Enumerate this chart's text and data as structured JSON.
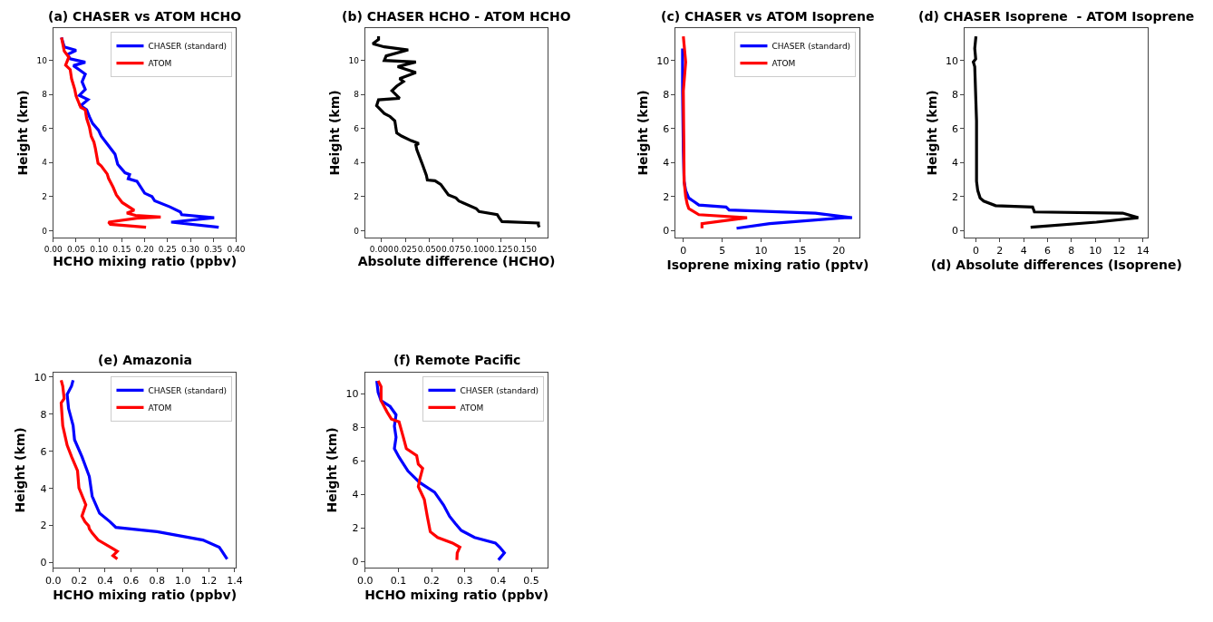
{
  "chart_data": [
    {
      "type": "line",
      "title": "(a) CHASER vs ATOM HCHO",
      "xlabel": "HCHO mixing ratio (ppbv)",
      "ylabel": "Height (km)",
      "xlim": [
        0,
        0.4
      ],
      "ylim": [
        -0.4,
        11.9
      ],
      "grid": false,
      "legend": "top right",
      "xticks": [
        {
          "value": 0,
          "label": "0.00"
        },
        {
          "value": 0.05,
          "label": "0.05"
        },
        {
          "value": 0.1,
          "label": "0.10"
        },
        {
          "value": 0.15,
          "label": "0.15"
        },
        {
          "value": 0.2,
          "label": "0.20"
        },
        {
          "value": 0.25,
          "label": "0.25"
        },
        {
          "value": 0.3,
          "label": "0.30"
        },
        {
          "value": 0.35,
          "label": "0.35"
        },
        {
          "value": 0.4,
          "label": "0.40"
        }
      ],
      "yticks": [
        0,
        2,
        4,
        6,
        8,
        10
      ],
      "series": [
        {
          "name": "CHASER (standard)",
          "color": "#0000ff",
          "x": [
            0.362,
            0.258,
            0.352,
            0.281,
            0.278,
            0.255,
            0.222,
            0.216,
            0.2,
            0.183,
            0.164,
            0.167,
            0.157,
            0.141,
            0.135,
            0.118,
            0.105,
            0.099,
            0.086,
            0.079,
            0.073,
            0.06,
            0.076,
            0.057,
            0.07,
            0.063,
            0.07,
            0.057,
            0.044,
            0.07,
            0.037,
            0.031,
            0.05,
            0.024,
            0.018
          ],
          "values": [
            0.2,
            0.5,
            0.76,
            0.94,
            1.1,
            1.4,
            1.75,
            2.0,
            2.2,
            2.9,
            3.05,
            3.3,
            3.4,
            3.9,
            4.5,
            5.1,
            5.55,
            5.9,
            6.3,
            6.7,
            7.1,
            7.35,
            7.7,
            7.95,
            8.3,
            8.75,
            9.2,
            9.45,
            9.7,
            9.9,
            10.1,
            10.35,
            10.6,
            10.8,
            11.35
          ]
        },
        {
          "name": "ATOM",
          "color": "#ff0000",
          "x": [
            0.203,
            0.125,
            0.121,
            0.183,
            0.235,
            0.18,
            0.161,
            0.177,
            0.151,
            0.138,
            0.131,
            0.121,
            0.118,
            0.105,
            0.098,
            0.092,
            0.089,
            0.083,
            0.079,
            0.073,
            0.07,
            0.06,
            0.05,
            0.047,
            0.04,
            0.037,
            0.027,
            0.034,
            0.024,
            0.018
          ],
          "values": [
            0.2,
            0.37,
            0.5,
            0.73,
            0.8,
            0.9,
            1.03,
            1.2,
            1.65,
            2.1,
            2.55,
            3.07,
            3.33,
            3.8,
            3.96,
            4.85,
            5.2,
            5.55,
            6.1,
            6.6,
            7.1,
            7.25,
            7.9,
            8.3,
            8.93,
            9.47,
            9.73,
            10.2,
            10.55,
            11.35
          ]
        }
      ]
    },
    {
      "type": "line",
      "title": "(b) CHASER HCHO - ATOM HCHO",
      "xlabel": "Absolute difference (HCHO)",
      "ylabel": "Height (km)",
      "xlim": [
        -0.017,
        0.174
      ],
      "ylim": [
        -0.4,
        11.9
      ],
      "grid": false,
      "xticks": [
        {
          "value": 0,
          "label": "0.000"
        },
        {
          "value": 0.025,
          "label": "0.025"
        },
        {
          "value": 0.05,
          "label": "0.050"
        },
        {
          "value": 0.075,
          "label": "0.075"
        },
        {
          "value": 0.1,
          "label": "0.100"
        },
        {
          "value": 0.125,
          "label": "0.125"
        },
        {
          "value": 0.15,
          "label": "0.150"
        }
      ],
      "yticks": [
        0,
        2,
        4,
        6,
        8,
        10
      ],
      "series": [
        {
          "color": "#000000",
          "x": [
            0.165,
            0.164,
            0.164,
            0.126,
            0.123,
            0.121,
            0.102,
            0.099,
            0.081,
            0.078,
            0.07,
            0.062,
            0.056,
            0.048,
            0.047,
            0.043,
            0.037,
            0.036,
            0.039,
            0.031,
            0.021,
            0.016,
            0.014,
            0.009,
            0.003,
            -0.005,
            -0.003,
            0.019,
            0.011,
            0.016,
            0.023,
            0.019,
            0.036,
            0.017,
            0.036,
            0.003,
            0.005,
            0.028,
            0.003,
            -0.009,
            -0.003,
            -0.003
          ],
          "values": [
            0.2,
            0.32,
            0.45,
            0.53,
            0.76,
            0.94,
            1.12,
            1.3,
            1.74,
            1.92,
            2.1,
            2.72,
            2.93,
            2.98,
            3.25,
            3.87,
            4.76,
            5.03,
            5.12,
            5.29,
            5.56,
            5.74,
            6.45,
            6.71,
            6.89,
            7.34,
            7.69,
            7.78,
            8.22,
            8.49,
            8.76,
            8.93,
            9.29,
            9.64,
            9.91,
            10.0,
            10.27,
            10.62,
            10.8,
            10.98,
            11.24,
            11.42
          ]
        }
      ]
    },
    {
      "type": "line",
      "title": "(c) CHASER vs ATOM Isoprene",
      "xlabel": "Isoprene mixing ratio (pptv)",
      "ylabel": "Height (km)",
      "xlim": [
        -0.97,
        22.7
      ],
      "ylim": [
        -0.4,
        11.9
      ],
      "grid": false,
      "legend": "top right",
      "xticks": [
        0,
        5,
        10,
        15,
        20
      ],
      "yticks": [
        0,
        2,
        4,
        6,
        8,
        10
      ],
      "series": [
        {
          "name": "CHASER (standard)",
          "color": "#0000ff",
          "x": [
            6.85,
            11.1,
            20.7,
            21.7,
            17.0,
            5.9,
            5.5,
            2.0,
            0.7,
            0.3,
            0.1,
            0,
            -0.1,
            -0.1
          ],
          "values": [
            0.14,
            0.41,
            0.76,
            0.76,
            1.03,
            1.21,
            1.39,
            1.51,
            1.92,
            2.36,
            2.9,
            4.67,
            8.2,
            10.7
          ]
        },
        {
          "name": "ATOM",
          "color": "#ff0000",
          "x": [
            2.4,
            2.4,
            8.2,
            2.0,
            0.7,
            0.5,
            0.3,
            0.1,
            0,
            0.3,
            0
          ],
          "values": [
            0.14,
            0.41,
            0.76,
            0.94,
            1.3,
            1.56,
            2.0,
            2.9,
            8.2,
            9.9,
            11.42
          ]
        }
      ]
    },
    {
      "type": "line",
      "title": "(d) CHASER Isoprene  - ATOM Isoprene",
      "xlabel": "(d) Absolute differences (Isoprene)",
      "ylabel": "Height (km)",
      "xlim": [
        -0.92,
        14.4
      ],
      "ylim": [
        -0.4,
        11.9
      ],
      "grid": false,
      "xticks": [
        0,
        2,
        4,
        6,
        8,
        10,
        12,
        14
      ],
      "yticks": [
        0,
        2,
        4,
        6,
        8,
        10
      ],
      "series": [
        {
          "color": "#000000",
          "x": [
            4.58,
            10.1,
            13.6,
            12.3,
            4.9,
            4.75,
            1.65,
            0.65,
            0.35,
            0.15,
            0.05,
            0.05,
            -0.1,
            -0.22,
            -0.02,
            -0.1,
            0
          ],
          "values": [
            0.2,
            0.5,
            0.76,
            1.03,
            1.1,
            1.39,
            1.47,
            1.74,
            1.92,
            2.36,
            2.9,
            6.45,
            9.64,
            9.91,
            10.09,
            10.71,
            11.42
          ]
        }
      ]
    },
    {
      "type": "line",
      "title": "(e) Amazonia",
      "xlabel": "HCHO mixing ratio (ppbv)",
      "ylabel": "Height (km)",
      "xlim": [
        0,
        1.41
      ],
      "ylim": [
        -0.26,
        10.24
      ],
      "grid": false,
      "legend": "top right",
      "xticks": [
        {
          "value": 0,
          "label": "0.0"
        },
        {
          "value": 0.2,
          "label": "0.2"
        },
        {
          "value": 0.4,
          "label": "0.4"
        },
        {
          "value": 0.6,
          "label": "0.6"
        },
        {
          "value": 0.8,
          "label": "0.8"
        },
        {
          "value": 1,
          "label": "1.0"
        },
        {
          "value": 1.2,
          "label": "1.2"
        },
        {
          "value": 1.4,
          "label": "1.4"
        }
      ],
      "yticks": [
        0,
        2,
        4,
        6,
        8,
        10
      ],
      "series": [
        {
          "name": "CHASER (standard)",
          "color": "#0000ff",
          "x": [
            1.341,
            1.302,
            1.28,
            1.154,
            0.801,
            0.483,
            0.437,
            0.357,
            0.3,
            0.278,
            0.221,
            0.164,
            0.153,
            0.118,
            0.107,
            0.141,
            0.153
          ],
          "values": [
            0.2,
            0.61,
            0.84,
            1.22,
            1.67,
            1.9,
            2.21,
            2.66,
            3.58,
            4.64,
            5.71,
            6.62,
            7.38,
            8.3,
            9.06,
            9.51,
            9.82
          ]
        },
        {
          "name": "ATOM",
          "color": "#ff0000",
          "x": [
            0.494,
            0.46,
            0.494,
            0.46,
            0.346,
            0.3,
            0.278,
            0.273,
            0.244,
            0.221,
            0.251,
            0.198,
            0.187,
            0.141,
            0.107,
            0.073,
            0.061,
            0.084,
            0.073,
            0.061
          ],
          "values": [
            0.2,
            0.38,
            0.61,
            0.76,
            1.22,
            1.6,
            1.83,
            1.98,
            2.21,
            2.51,
            3.12,
            4.03,
            4.95,
            5.71,
            6.32,
            7.38,
            8.6,
            8.83,
            9.51,
            9.82
          ]
        }
      ]
    },
    {
      "type": "line",
      "title": "(f) Remote Pacific",
      "xlabel": "HCHO mixing ratio (ppbv)",
      "ylabel": "Height (km)",
      "xlim": [
        0,
        0.55
      ],
      "ylim": [
        -0.35,
        11.26
      ],
      "grid": false,
      "legend": "top right",
      "xticks": [
        {
          "value": 0,
          "label": "0.0"
        },
        {
          "value": 0.1,
          "label": "0.1"
        },
        {
          "value": 0.2,
          "label": "0.2"
        },
        {
          "value": 0.3,
          "label": "0.3"
        },
        {
          "value": 0.4,
          "label": "0.4"
        },
        {
          "value": 0.5,
          "label": "0.5"
        }
      ],
      "yticks": [
        0,
        2,
        4,
        6,
        8,
        10
      ],
      "series": [
        {
          "name": "CHASER (standard)",
          "color": "#0000ff",
          "x": [
            0.401,
            0.419,
            0.405,
            0.392,
            0.329,
            0.289,
            0.271,
            0.254,
            0.236,
            0.209,
            0.164,
            0.129,
            0.102,
            0.088,
            0.093,
            0.088,
            0.093,
            0.075,
            0.048,
            0.039,
            0.035
          ],
          "values": [
            0.1,
            0.52,
            0.86,
            1.11,
            1.44,
            1.86,
            2.28,
            2.7,
            3.37,
            4.13,
            4.71,
            5.39,
            6.22,
            6.73,
            7.4,
            8.07,
            8.74,
            9.24,
            9.58,
            10.08,
            10.76
          ]
        },
        {
          "name": "ATOM",
          "color": "#ff0000",
          "x": [
            0.276,
            0.277,
            0.285,
            0.263,
            0.218,
            0.196,
            0.187,
            0.178,
            0.16,
            0.164,
            0.173,
            0.16,
            0.155,
            0.124,
            0.115,
            0.102,
            0.079,
            0.066,
            0.048,
            0.048,
            0.039
          ],
          "values": [
            0.1,
            0.52,
            0.86,
            1.11,
            1.44,
            1.78,
            2.7,
            3.71,
            4.46,
            4.88,
            5.55,
            5.8,
            6.31,
            6.73,
            7.4,
            8.32,
            8.49,
            8.91,
            9.58,
            10.42,
            10.76
          ]
        }
      ]
    }
  ]
}
